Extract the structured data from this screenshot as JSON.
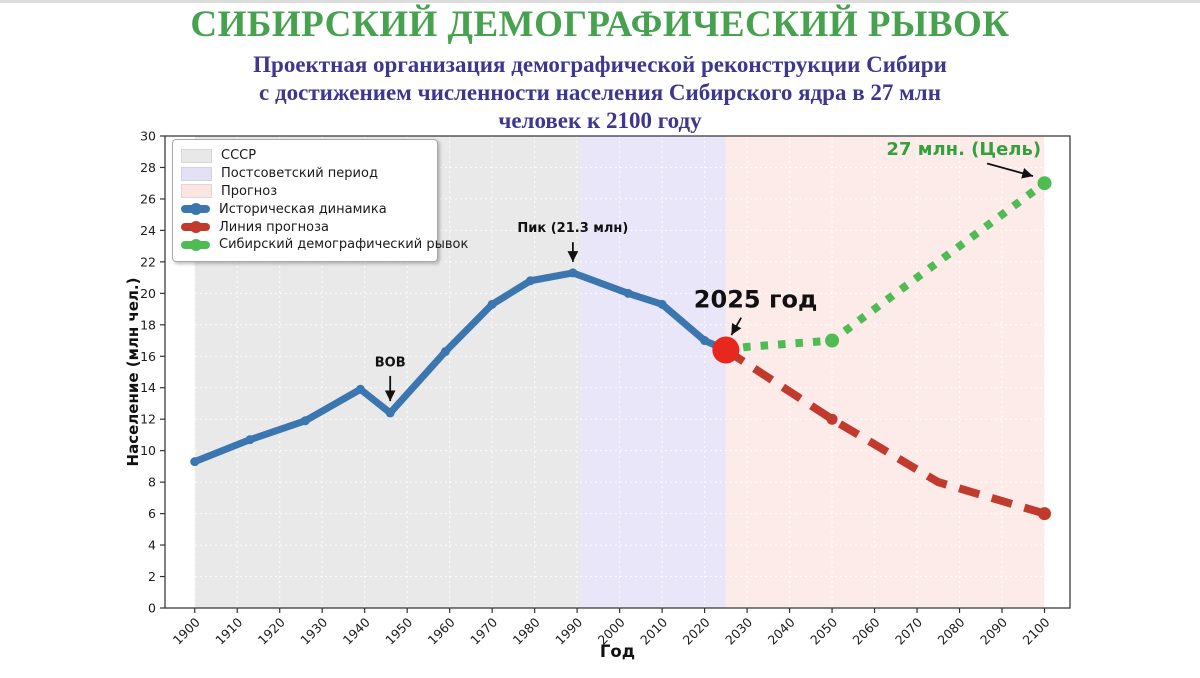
{
  "window": {
    "top_strip_color": "#dcdcdc"
  },
  "header": {
    "title": "СИБИРСКИЙ ДЕМОГРАФИЧЕСКИЙ РЫВОК",
    "title_color": "#46a24f",
    "subtitle_color": "#3e3790",
    "subtitle_line1": "Проектная организация демографической реконструкции Сибири",
    "subtitle_line2": "с достижением численности населения Сибирского ядра в 27 млн",
    "subtitle_line3": "человек к 2100 году"
  },
  "chart_data": {
    "type": "line",
    "xlabel": "Год",
    "ylabel": "Население (млн чел.)",
    "xlim": [
      1893,
      2106
    ],
    "ylim": [
      0,
      30
    ],
    "x_ticks": [
      1900,
      1910,
      1920,
      1930,
      1940,
      1950,
      1960,
      1970,
      1980,
      1990,
      2000,
      2010,
      2020,
      2030,
      2040,
      2050,
      2060,
      2070,
      2080,
      2090,
      2100
    ],
    "y_ticks": [
      0,
      2,
      4,
      6,
      8,
      10,
      12,
      14,
      16,
      18,
      20,
      22,
      24,
      26,
      28,
      30
    ],
    "grid": true,
    "legend_position": "upper left",
    "regions": [
      {
        "label": "СССР",
        "from": 1900,
        "to": 1991,
        "color": "#e9e9e9"
      },
      {
        "label": "Постсоветский период",
        "from": 1991,
        "to": 2025,
        "color": "#e9e6f9"
      },
      {
        "label": "Прогноз",
        "from": 2025,
        "to": 2100,
        "color": "#fcebe8"
      }
    ],
    "series": [
      {
        "name": "Историческая динамика",
        "color": "#3b76b0",
        "style": "solid",
        "marker": "circle",
        "points": [
          [
            1900,
            9.3
          ],
          [
            1913,
            10.7
          ],
          [
            1926,
            11.9
          ],
          [
            1939,
            13.9
          ],
          [
            1946,
            12.4
          ],
          [
            1959,
            16.3
          ],
          [
            1970,
            19.3
          ],
          [
            1979,
            20.8
          ],
          [
            1989,
            21.3
          ],
          [
            2002,
            20.0
          ],
          [
            2010,
            19.3
          ],
          [
            2020,
            17.0
          ],
          [
            2025,
            16.4
          ]
        ]
      },
      {
        "name": "Линия прогноза",
        "color": "#c03a2d",
        "style": "dashed",
        "marker": "circle",
        "points": [
          [
            2025,
            16.4
          ],
          [
            2050,
            12.0
          ],
          [
            2075,
            8.0
          ],
          [
            2100,
            6.0
          ]
        ]
      },
      {
        "name": "Сибирский демографический рывок",
        "color": "#4fbc53",
        "style": "dotted",
        "marker": "circle",
        "points": [
          [
            2025,
            16.4
          ],
          [
            2030,
            16.6
          ],
          [
            2035,
            16.7
          ],
          [
            2040,
            16.8
          ],
          [
            2045,
            16.9
          ],
          [
            2050,
            17.0
          ],
          [
            2100,
            27.0
          ]
        ]
      }
    ],
    "highlight_points": [
      {
        "x": 2050,
        "y": 17.0,
        "r": 7,
        "color": "#4fbc53",
        "name": "goal-line-2050-marker"
      },
      {
        "x": 2100,
        "y": 27.0,
        "r": 7,
        "color": "#4fbc53",
        "name": "goal-line-2100-marker"
      },
      {
        "x": 2050,
        "y": 12.0,
        "r": 5.5,
        "color": "#c03a2d",
        "name": "forecast-2050-marker"
      },
      {
        "x": 2100,
        "y": 6.0,
        "r": 6.5,
        "color": "#c03a2d",
        "name": "forecast-2100-marker"
      },
      {
        "x": 2025,
        "y": 16.4,
        "r": 13.5,
        "color": "#e8281e",
        "name": "year-2025-marker"
      }
    ],
    "annotations": [
      {
        "text": "ВОВ",
        "tx": 1946,
        "ty": 15.35,
        "sx": 1946,
        "sy": 14.75,
        "ex": 1946,
        "ey": 13.15,
        "size": 13,
        "color": "#111111"
      },
      {
        "text": "Пик (21.3 млн)",
        "tx": 1989,
        "ty": 23.9,
        "sx": 1989,
        "sy": 23.25,
        "ex": 1989,
        "ey": 22.0,
        "size": 13,
        "color": "#111111"
      },
      {
        "text": "2025 год",
        "tx": 2032,
        "ty": 19.1,
        "sx": 2028.6,
        "sy": 18.45,
        "ex": 2026.3,
        "ey": 17.35,
        "size": 24,
        "color": "#111111"
      },
      {
        "text": "27 млн. (Цель)",
        "tx": 2081,
        "ty": 28.8,
        "sx": 2086.5,
        "sy": 28.25,
        "ex": 2097.3,
        "ey": 27.45,
        "size": 18,
        "color": "#35a03e"
      }
    ],
    "legend": [
      {
        "label": "СССР",
        "type": "patch",
        "color": "#e8e8e8"
      },
      {
        "label": "Постсоветский период",
        "type": "patch",
        "color": "#e4e1f7"
      },
      {
        "label": "Прогноз",
        "type": "patch",
        "color": "#fbe5e3"
      },
      {
        "label": "Историческая динамика",
        "type": "line",
        "color": "#3b76b0"
      },
      {
        "label": "Линия прогноза",
        "type": "line",
        "color": "#c03a2d"
      },
      {
        "label": "Сибирский демографический рывок",
        "type": "line",
        "color": "#4fbc53"
      }
    ]
  }
}
